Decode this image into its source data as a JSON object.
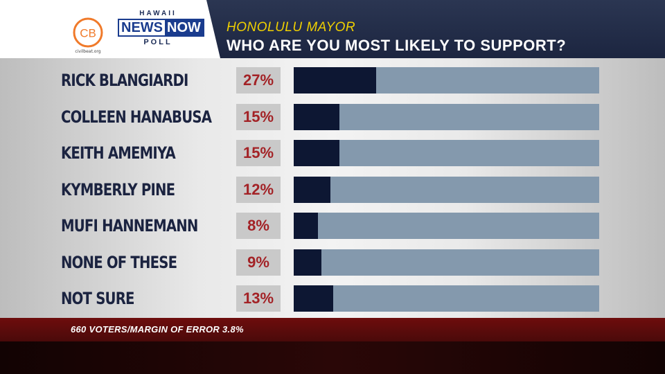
{
  "brand": {
    "cb_logo_text": "CB",
    "cb_sub": "civilbeat.org",
    "hnn_top": "HAWAII",
    "hnn_news": "NEWS",
    "hnn_now": "NOW",
    "hnn_bottom": "POLL"
  },
  "header": {
    "kicker": "HONOLULU MAYOR",
    "question": "WHO ARE YOU MOST LIKELY TO SUPPORT?"
  },
  "chart_data": {
    "type": "bar",
    "orientation": "horizontal",
    "title": "WHO ARE YOU MOST LIKELY TO SUPPORT?",
    "categories": [
      "RICK BLANGIARDI",
      "COLLEEN HANABUSA",
      "KEITH AMEMIYA",
      "KYMBERLY PINE",
      "MUFI HANNEMANN",
      "NONE OF THESE",
      "NOT SURE"
    ],
    "values": [
      27,
      15,
      15,
      12,
      8,
      9,
      13
    ],
    "labels": [
      "27%",
      "15%",
      "15%",
      "12%",
      "8%",
      "9%",
      "13%"
    ],
    "xlim": [
      0,
      100
    ],
    "grid": false,
    "colors": {
      "fill": "#0d1733",
      "track": "#8499ad",
      "value_text": "#a32226"
    }
  },
  "footer": {
    "note": "660 VOTERS/MARGIN OF ERROR 3.8%"
  }
}
